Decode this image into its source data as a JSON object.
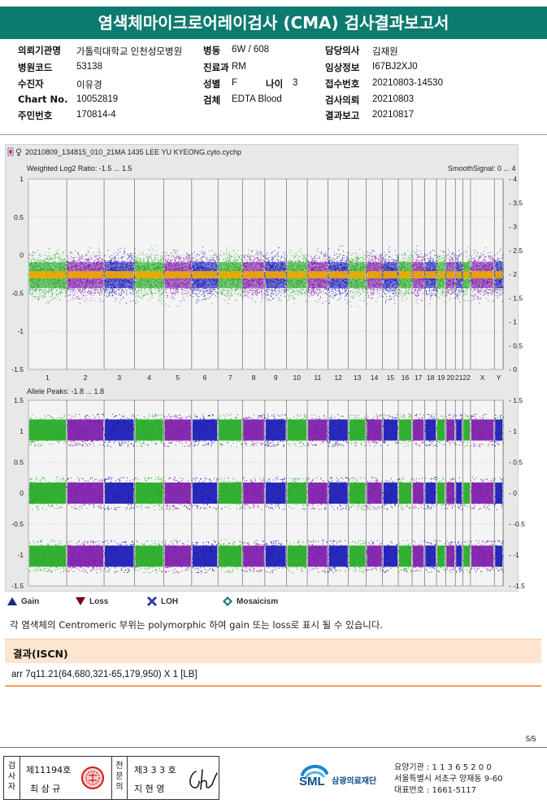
{
  "title": "염색체마이크로어레이검사 (CMA) 검사결과보고서",
  "patient": {
    "hospital_label": "의뢰기관명",
    "hospital": "가톨릭대학교 인천성모병원",
    "ward_label": "병동",
    "ward": "6W / 608",
    "doctor_label": "담당의사",
    "doctor": "김재원",
    "code_label": "병원코드",
    "code": "53138",
    "dept_label": "진료과",
    "dept": "RM",
    "clinical_label": "임상정보",
    "clinical": "I67BJ2XJ0",
    "receiver_label": "수진자",
    "receiver": "이유경",
    "sex_label": "성별",
    "sex": "F",
    "age_label": "나이",
    "age": "3",
    "receipt_label": "접수번호",
    "receipt": "20210803-14530",
    "chart_label": "Chart No.",
    "chart": "10052819",
    "specimen_label": "검체",
    "specimen": "EDTA Blood",
    "request_label": "검사의뢰",
    "request": "20210803",
    "idnum_label": "주민번호",
    "idnum": "170814-4",
    "report_label": "결과보고",
    "report": "20210817"
  },
  "plot": {
    "file": "20210809_134815_010_21MA 1435 LEE YU KYEONG.cyto.cychp",
    "top_label": "Weighted Log2 Ratio: -1.5 ... 1.5",
    "smooth_label": "SmoothSignal: 0 ... 4",
    "bottom_label": "Allele Peaks: -1.8 ... 1.8",
    "top_left_ticks": [
      "1",
      "0.5",
      "0",
      "-0.5",
      "-1",
      "-1.5"
    ],
    "top_right_ticks": [
      "4",
      "3.5",
      "3",
      "2.5",
      "2",
      "1.5",
      "1",
      "0.5",
      "0"
    ],
    "bottom_left_ticks": [
      "1.5",
      "1",
      "0.5",
      "0",
      "-0.5",
      "-1",
      "-1.5"
    ],
    "bottom_right_ticks": [
      "1.5",
      "1",
      "0.5",
      "0",
      "-0.5",
      "-1",
      "-1.5"
    ],
    "chromosomes": [
      "1",
      "2",
      "3",
      "4",
      "5",
      "6",
      "7",
      "8",
      "9",
      "10",
      "11",
      "12",
      "13",
      "14",
      "15",
      "16",
      "17",
      "18",
      "19",
      "20",
      "21",
      "22",
      "X",
      "Y"
    ],
    "colors": {
      "green": "#1fa81f",
      "purple": "#7a16a8",
      "blue": "#1414b4",
      "orange": "#f2a800",
      "bg": "#e8e8e8"
    }
  },
  "legend": {
    "gain": "Gain",
    "loss": "Loss",
    "loh": "LOH",
    "mosaicism": "Mosaicism",
    "gain_color": "#1a2a80",
    "loss_color": "#7a0010",
    "loh_color": "#3838a0",
    "mosaic_color": "#1a7a70"
  },
  "note": "각 염색체의 Centromeric 부위는 polymorphic 하여 gain 또는 loss로 표시 될 수 있습니다.",
  "result": {
    "heading": "결과(ISCN)",
    "text": "arr 7q11.21(64,680,321-65,179,950) X 1 [LB]"
  },
  "page": "5/5",
  "signature": {
    "examiner_label": "검사자",
    "examiner_no": "제11194호",
    "examiner_name": "최 삼 규",
    "specialist_label": "전문의",
    "specialist_no": "제3 3 3 호",
    "specialist_name": "지 현 영"
  },
  "org": {
    "logo": "SML",
    "name": "삼광의료재단",
    "code": "요양기관 : 1 1 3 6 5 2 0 0",
    "address": "서울특별시 서초구 양재동 9-60",
    "phone": "대표번호 : 1661-5117"
  }
}
